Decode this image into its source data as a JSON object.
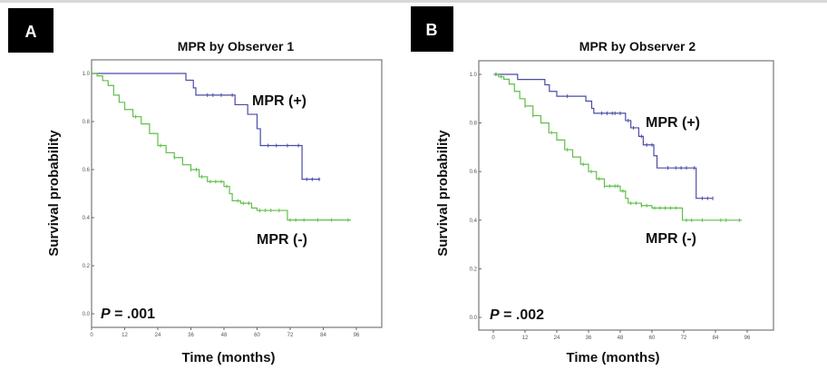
{
  "colors": {
    "mpr_pos": "#4b4ba6",
    "mpr_neg": "#5fbf4a",
    "frame": "#777777",
    "panel_label_bg": "#000000"
  },
  "chart_data": [
    {
      "type": "line",
      "panel_label": "A",
      "title": "MPR by Observer 1",
      "xlabel": "Time (months)",
      "ylabel": "Survival probability",
      "xlim": [
        0,
        96
      ],
      "ylim": [
        0,
        1
      ],
      "xticks": [
        0,
        12,
        24,
        36,
        48,
        60,
        72,
        84,
        96
      ],
      "yticks": [
        "0.0",
        "0.2",
        "0.4",
        "0.6",
        "0.8",
        "1.0"
      ],
      "grid": false,
      "annotation": "P = .001",
      "annotation_p_letter": "P",
      "annotation_value": " = .001",
      "series": [
        {
          "name": "MPR (+)",
          "color": "#4b4ba6",
          "steps": [
            [
              0,
              1.0
            ],
            [
              34.2,
              0.972
            ],
            [
              36.9,
              0.94
            ],
            [
              37.8,
              0.91
            ],
            [
              52,
              0.87
            ],
            [
              56.6,
              0.83
            ],
            [
              60,
              0.77
            ],
            [
              61.2,
              0.7
            ],
            [
              76.3,
              0.56
            ],
            [
              82.9,
              0.56
            ]
          ],
          "censored": [
            42,
            44,
            47,
            51,
            64,
            67,
            71,
            75,
            78,
            80,
            82.5
          ]
        },
        {
          "name": "MPR (-)",
          "color": "#5fbf4a",
          "steps": [
            [
              0,
              1.0
            ],
            [
              2,
              0.99
            ],
            [
              4,
              0.97
            ],
            [
              6,
              0.95
            ],
            [
              8,
              0.91
            ],
            [
              10,
              0.88
            ],
            [
              12,
              0.85
            ],
            [
              15,
              0.82
            ],
            [
              18,
              0.79
            ],
            [
              21,
              0.75
            ],
            [
              24,
              0.7
            ],
            [
              27,
              0.67
            ],
            [
              30,
              0.65
            ],
            [
              33,
              0.62
            ],
            [
              36,
              0.6
            ],
            [
              39,
              0.57
            ],
            [
              42,
              0.55
            ],
            [
              48,
              0.53
            ],
            [
              50,
              0.5
            ],
            [
              51,
              0.47
            ],
            [
              54,
              0.46
            ],
            [
              58,
              0.44
            ],
            [
              60,
              0.43
            ],
            [
              70.5,
              0.43
            ],
            [
              71,
              0.39
            ],
            [
              94,
              0.39
            ]
          ],
          "censored": [
            16,
            25,
            30,
            36,
            38,
            40,
            43,
            45,
            47,
            49,
            53,
            55,
            57,
            61,
            63,
            65,
            68,
            72,
            74,
            77,
            82,
            87,
            93
          ]
        }
      ]
    },
    {
      "type": "line",
      "panel_label": "B",
      "title": "MPR by Observer 2",
      "xlabel": "Time (months)",
      "ylabel": "Survival probability",
      "xlim": [
        0,
        96
      ],
      "ylim": [
        0,
        1
      ],
      "xticks": [
        0,
        12,
        24,
        36,
        48,
        60,
        72,
        84,
        96
      ],
      "yticks": [
        "0.0",
        "0.2",
        "0.4",
        "0.6",
        "0.8",
        "1.0"
      ],
      "grid": false,
      "annotation": "P = .002",
      "annotation_p_letter": "P",
      "annotation_value": " = .002",
      "series": [
        {
          "name": "MPR (+)",
          "color": "#4b4ba6",
          "steps": [
            [
              0.6,
              1.0
            ],
            [
              9.2,
              0.979
            ],
            [
              19.5,
              0.957
            ],
            [
              21.2,
              0.93
            ],
            [
              24,
              0.91
            ],
            [
              35,
              0.89
            ],
            [
              37.2,
              0.86
            ],
            [
              38,
              0.84
            ],
            [
              50,
              0.81
            ],
            [
              52,
              0.78
            ],
            [
              55,
              0.745
            ],
            [
              56.7,
              0.71
            ],
            [
              60.7,
              0.665
            ],
            [
              61.9,
              0.615
            ],
            [
              76.7,
              0.49
            ],
            [
              83,
              0.49
            ]
          ],
          "censored": [
            1,
            28,
            41,
            43,
            45,
            46,
            48,
            51,
            53,
            56,
            58,
            60,
            66,
            69,
            71,
            73,
            76,
            79,
            81,
            83
          ]
        },
        {
          "name": "MPR (-)",
          "color": "#5fbf4a",
          "steps": [
            [
              0,
              1.0
            ],
            [
              2,
              0.99
            ],
            [
              4,
              0.98
            ],
            [
              6,
              0.96
            ],
            [
              8,
              0.93
            ],
            [
              10,
              0.9
            ],
            [
              12,
              0.87
            ],
            [
              15,
              0.83
            ],
            [
              18,
              0.8
            ],
            [
              21,
              0.76
            ],
            [
              24,
              0.73
            ],
            [
              27,
              0.69
            ],
            [
              30,
              0.66
            ],
            [
              33,
              0.63
            ],
            [
              36,
              0.6
            ],
            [
              39,
              0.57
            ],
            [
              42,
              0.54
            ],
            [
              48,
              0.52
            ],
            [
              50,
              0.49
            ],
            [
              51,
              0.47
            ],
            [
              56,
              0.46
            ],
            [
              60,
              0.45
            ],
            [
              71,
              0.45
            ],
            [
              71.5,
              0.4
            ],
            [
              94,
              0.4
            ]
          ],
          "censored": [
            3,
            12,
            15,
            22,
            28,
            34,
            37,
            40,
            42,
            44,
            46,
            47,
            49,
            52,
            54,
            56,
            58,
            61,
            63,
            65,
            67,
            69,
            73,
            75,
            79,
            86,
            88,
            93
          ]
        }
      ]
    }
  ]
}
